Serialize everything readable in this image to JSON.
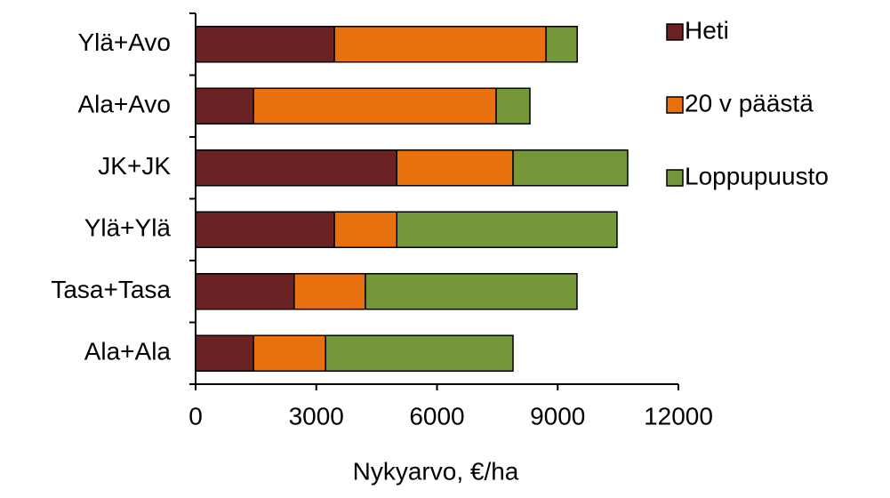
{
  "chart_data": {
    "type": "stacked-barh",
    "xlabel": "Nykyarvo, €/ha",
    "categories": [
      "Ylä+Avo",
      "Ala+Avo",
      "JK+JK",
      "Ylä+Ylä",
      "Tasa+Tasa",
      "Ala+Ala"
    ],
    "series": [
      {
        "name": "Heti",
        "color": "#6b2224",
        "values": [
          3450,
          1440,
          5000,
          3450,
          2450,
          1440
        ]
      },
      {
        "name": "20 v päästä",
        "color": "#e8700f",
        "values": [
          5260,
          6030,
          2890,
          1550,
          1770,
          1790
        ]
      },
      {
        "name": "Loppupuusto",
        "color": "#76963a",
        "values": [
          775,
          840,
          2850,
          5475,
          5260,
          4660
        ]
      }
    ],
    "xlim": [
      0,
      12000
    ],
    "xticks": [
      0,
      3000,
      6000,
      9000,
      12000
    ],
    "legend": "right"
  }
}
